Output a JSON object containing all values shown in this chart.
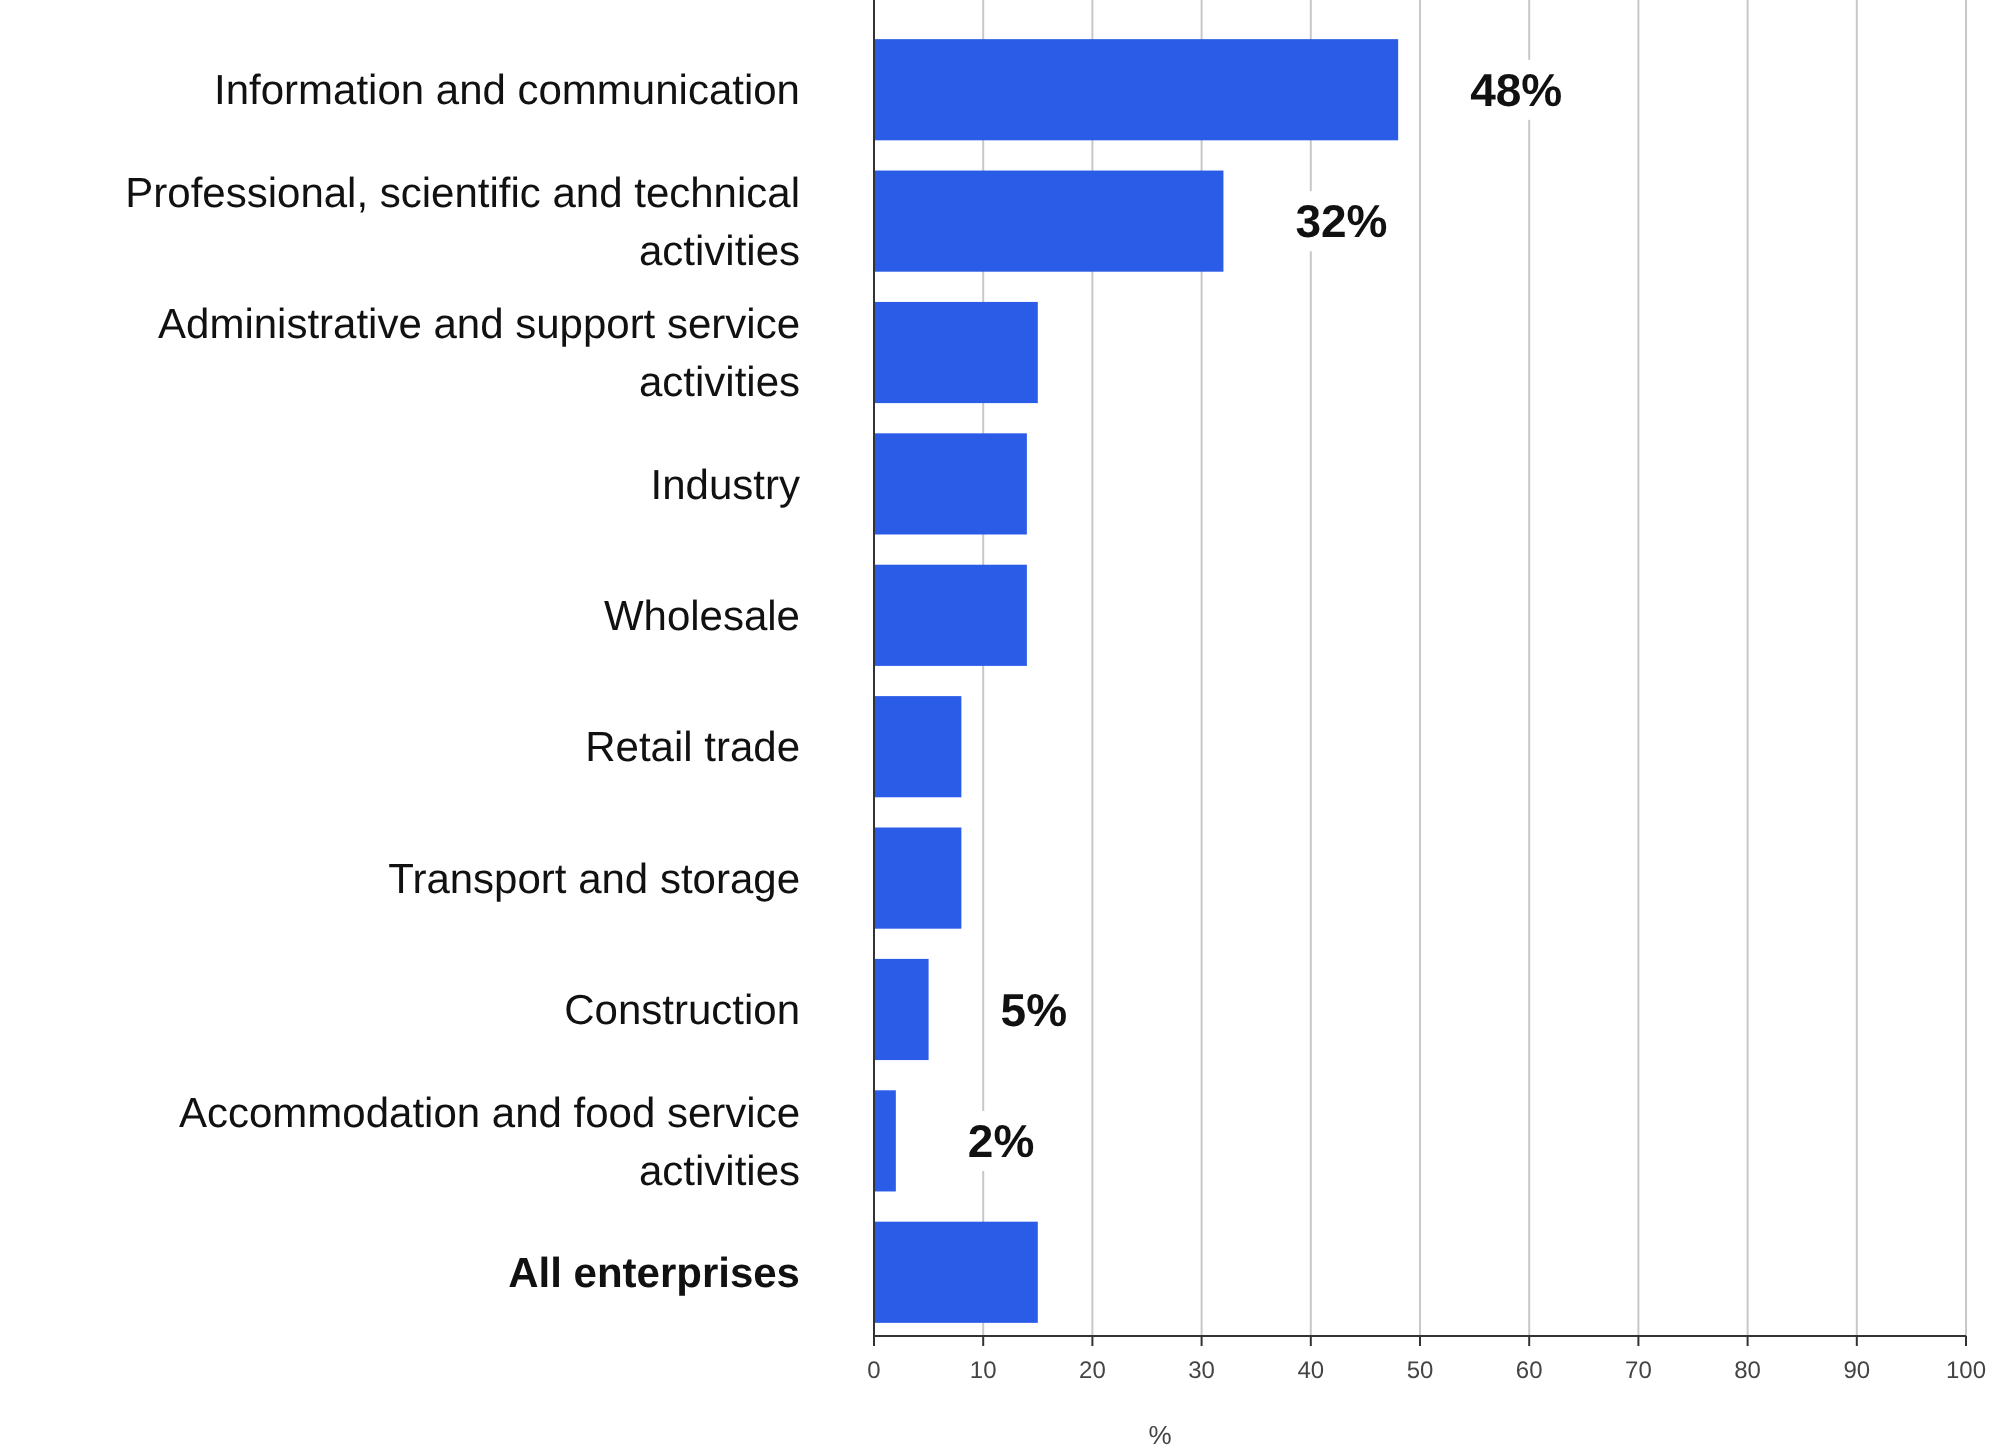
{
  "chart_data": {
    "type": "bar",
    "orientation": "horizontal",
    "xlabel": "%",
    "categories": [
      "Information and communication",
      "Professional, scientific and technical activities",
      "Administrative and support service activities",
      "Industry",
      "Wholesale",
      "Retail trade",
      "Transport and storage",
      "Construction",
      "Accommodation and food service activities",
      "All enterprises"
    ],
    "values": [
      48,
      32,
      15,
      14,
      14,
      8,
      8,
      5,
      2,
      15
    ],
    "value_labels": [
      "48%",
      "32%",
      null,
      null,
      null,
      null,
      null,
      "5%",
      "2%",
      null
    ],
    "color": "#2b5ce8",
    "xlim": [
      0,
      100
    ],
    "xticks": [
      0,
      10,
      20,
      30,
      40,
      50,
      60,
      70,
      80,
      90,
      100
    ],
    "grid": "x"
  }
}
